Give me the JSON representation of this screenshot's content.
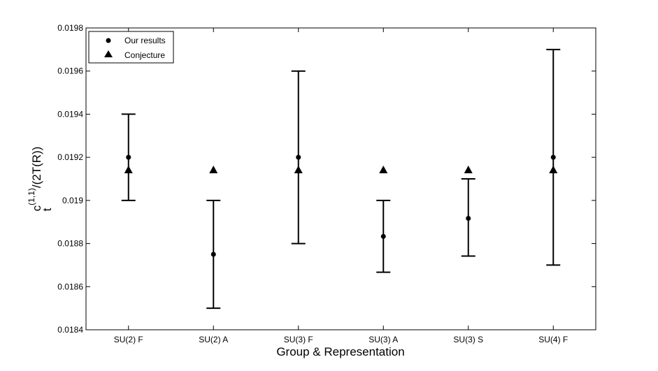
{
  "chart_data": {
    "type": "scatter",
    "title": "",
    "xlabel": "Group & Representation",
    "ylabel_main": "c",
    "ylabel_sup": "(1,1)",
    "ylabel_sub": "t",
    "ylabel_rest": "/(2T(R))",
    "categories": [
      "SU(2) F",
      "SU(2) A",
      "SU(3) F",
      "SU(3) A",
      "SU(3) S",
      "SU(4) F"
    ],
    "ylim": [
      0.0184,
      0.0198
    ],
    "yticks": [
      0.0184,
      0.0186,
      0.0188,
      0.019,
      0.0192,
      0.0194,
      0.0196,
      0.0198
    ],
    "ytick_labels": [
      "0.0184",
      "0.0186",
      "0.0188",
      "0.019",
      "0.0192",
      "0.0194",
      "0.0196",
      "0.0198"
    ],
    "grid": false,
    "legend_position": "top-left",
    "series": [
      {
        "name": "Our results",
        "marker": "circle",
        "values": [
          0.0192,
          0.01875,
          0.0192,
          0.018833,
          0.018917,
          0.0192
        ],
        "err_low": [
          0.019,
          0.0185,
          0.0188,
          0.018667,
          0.018742,
          0.0187
        ],
        "err_high": [
          0.0194,
          0.019,
          0.0196,
          0.019,
          0.0191,
          0.0197
        ]
      },
      {
        "name": "Conjecture",
        "marker": "triangle",
        "values": [
          0.019142,
          0.019142,
          0.019142,
          0.019142,
          0.019142,
          0.019142
        ]
      }
    ]
  }
}
